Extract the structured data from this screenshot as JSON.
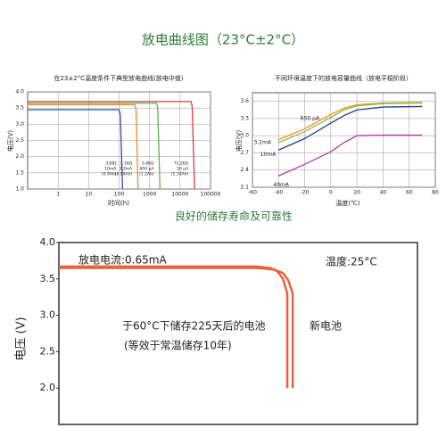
{
  "title": "放电曲线图（23°C±2°C）",
  "subtitle": "良好的储存寿命及可靠性",
  "chart_data": [
    {
      "type": "line",
      "title": "在23±2°C温度条件下典型放电曲线(放电中值)",
      "x_label": "时间(h)",
      "y_label": "电压(V)",
      "log_x": true,
      "grid": true,
      "xlim": [
        0.1,
        100000
      ],
      "xticks": [
        1,
        10,
        100,
        1000,
        10000,
        100000
      ],
      "ylim": [
        1,
        4
      ],
      "yticks": [
        {
          "value": 1,
          "label": "1.0"
        },
        1.5,
        {
          "value": 2,
          "label": "2.0"
        },
        2.5,
        {
          "value": 3,
          "label": "3.0"
        },
        3.5,
        {
          "value": 4,
          "label": "4.0"
        }
      ],
      "series": [
        {
          "label": [
            "330Ω",
            "10mA",
            "(0.9Ah)"
          ],
          "color": "#2a4fa8",
          "x": [
            0.1,
            100,
            110,
            130
          ],
          "values": [
            3.45,
            3.45,
            3.3,
            1.0
          ]
        },
        {
          "label": [
            "1.1KΩ",
            "3.2mA",
            "(0.99Ah)"
          ],
          "color": "#f08a24",
          "x": [
            0.1,
            330,
            360,
            420
          ],
          "values": [
            3.6,
            3.6,
            3.45,
            1.0
          ]
        },
        {
          "label": [
            "5.6KΩ",
            "650 µA",
            "(1.2Ah)"
          ],
          "color": "#5db34a",
          "x": [
            0.1,
            1700,
            1850,
            2200
          ],
          "values": [
            3.65,
            3.65,
            3.5,
            1.0
          ]
        },
        {
          "label": [
            "72.2KΩ",
            "50 µA",
            "(1.14Ah)"
          ],
          "color": "#e03a3a",
          "x": [
            0.1,
            23000,
            25000,
            30000
          ],
          "values": [
            3.7,
            3.7,
            3.55,
            1.0
          ]
        }
      ]
    },
    {
      "type": "line",
      "title": "不同环境温度下的放电容量曲线（放电平稳阶段）",
      "x_label": "温度(℃)",
      "y_label": "电压(V)",
      "log_x": false,
      "grid": true,
      "xlim": [
        -60,
        80
      ],
      "xticks": [
        -60,
        -40,
        -20,
        0,
        20,
        40,
        60,
        80
      ],
      "ylim": [
        2.1,
        3.75
      ],
      "yticks": [
        2.1,
        2.4,
        2.7,
        {
          "value": 3,
          "label": "3.0"
        },
        3.3,
        3.6
      ],
      "series": [
        {
          "label": [
            "650 μA"
          ],
          "color": "#f08a24",
          "x": [
            -40,
            -20,
            0,
            10,
            20,
            40,
            70
          ],
          "values": [
            2.93,
            3.12,
            3.37,
            3.48,
            3.54,
            3.57,
            3.58
          ]
        },
        {
          "label": [
            "3.2mA"
          ],
          "color": "#8bbf3a",
          "x": [
            -40,
            -20,
            0,
            10,
            20,
            40,
            70
          ],
          "values": [
            2.88,
            3.07,
            3.32,
            3.45,
            3.52,
            3.56,
            3.57
          ]
        },
        {
          "label": [
            "10mA"
          ],
          "color": "#1f3f8f",
          "x": [
            -40,
            -20,
            0,
            10,
            20,
            40,
            70
          ],
          "values": [
            2.75,
            2.95,
            3.22,
            3.35,
            3.45,
            3.5,
            3.51
          ]
        },
        {
          "label": [
            "40mA"
          ],
          "color": "#b03ab0",
          "x": [
            -40,
            -20,
            0,
            10,
            20,
            40,
            70
          ],
          "values": [
            2.3,
            2.5,
            2.72,
            2.88,
            3.0,
            3.01,
            3.01
          ]
        }
      ]
    },
    {
      "type": "line",
      "y_label": "电压 (V)",
      "log_x": false,
      "grid": false,
      "xlim": [
        0,
        100
      ],
      "ylim": [
        1.5,
        4.0
      ],
      "yticks": [
        {
          "value": 2,
          "label": "2.0"
        },
        2.5,
        {
          "value": 3,
          "label": "3.0"
        },
        3.5,
        {
          "value": 4,
          "label": "4.0"
        }
      ],
      "annotations": [
        "放电电流:0.65mA",
        "温度:25°C",
        "于60°C下储存225天后的电池",
        "(等效于常温储存10年)",
        "新电池"
      ],
      "series": [
        {
          "color": "#e8623a",
          "x": [
            0,
            55,
            59,
            61,
            62.5,
            63.7,
            63.7
          ],
          "values": [
            3.67,
            3.67,
            3.65,
            3.6,
            3.5,
            3.3,
            2.0
          ]
        },
        {
          "color": "#e8623a",
          "x": [
            0,
            55,
            60,
            62.5,
            64,
            65.2,
            65.2
          ],
          "values": [
            3.65,
            3.65,
            3.63,
            3.58,
            3.48,
            3.3,
            2.0
          ]
        }
      ]
    }
  ]
}
